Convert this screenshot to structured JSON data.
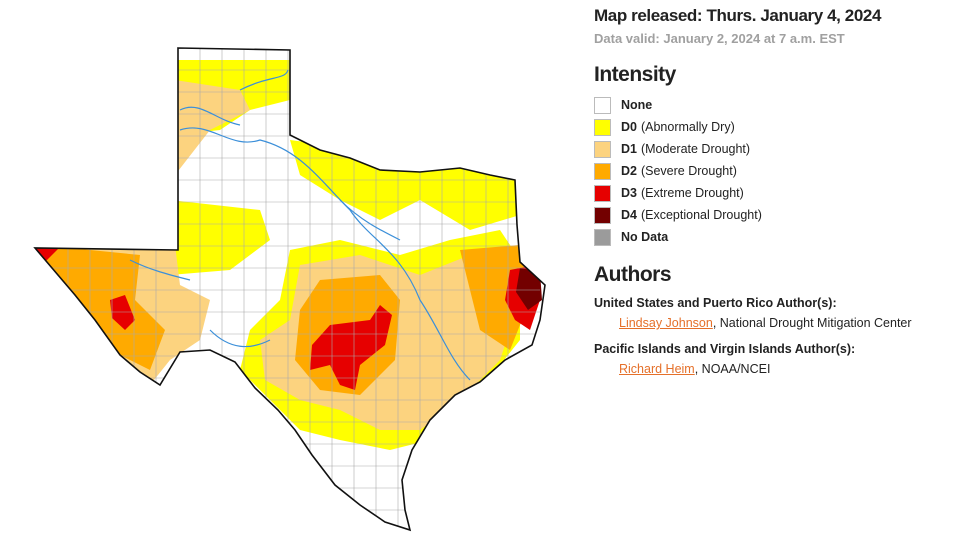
{
  "header": {
    "released": "Map released: Thurs. January 4, 2024",
    "valid": "Data valid: January 2, 2024 at 7 a.m. EST"
  },
  "intensity": {
    "title": "Intensity",
    "items": [
      {
        "code": "None",
        "color": "#ffffff"
      },
      {
        "code": "D0",
        "label": "(Abnormally Dry)",
        "color": "#ffff00"
      },
      {
        "code": "D1",
        "label": "(Moderate Drought)",
        "color": "#fcd37f"
      },
      {
        "code": "D2",
        "label": "(Severe Drought)",
        "color": "#ffaa00"
      },
      {
        "code": "D3",
        "label": "(Extreme Drought)",
        "color": "#e60000"
      },
      {
        "code": "D4",
        "label": "(Exceptional Drought)",
        "color": "#730000"
      },
      {
        "code": "No Data",
        "color": "#9b9b9b"
      }
    ]
  },
  "authors": {
    "title": "Authors",
    "groups": [
      {
        "heading": "United States and Puerto Rico Author(s):",
        "name": "Lindsay Johnson",
        "affiliation": ", National Drought Mitigation Center"
      },
      {
        "heading": "Pacific Islands and Virgin Islands Author(s):",
        "name": "Richard Heim",
        "affiliation": ", NOAA/NCEI"
      }
    ]
  }
}
